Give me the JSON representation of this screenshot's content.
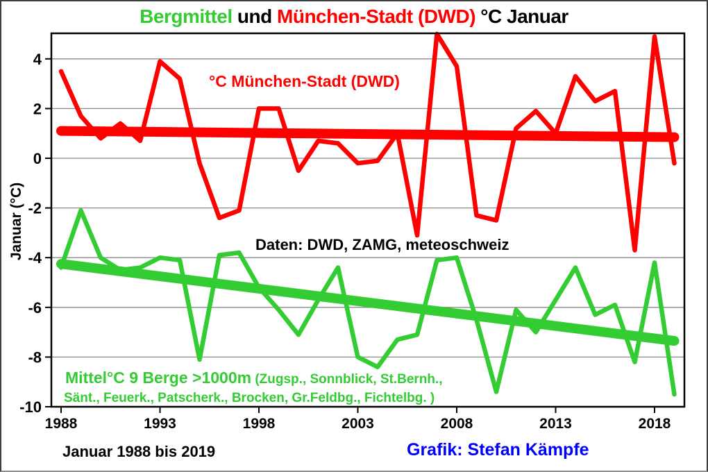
{
  "title": {
    "part_bergmittel": "Bergmittel",
    "part_und": " und ",
    "part_muenchen": "München-Stadt (DWD)",
    "part_rest": " °C Januar"
  },
  "annotations": {
    "red_series_label": "°C München-Stadt (DWD)",
    "data_sources": "Daten: DWD, ZAMG, meteoschweiz",
    "green_series_label_big": "Mittel°C 9 Berge >1000m",
    "green_series_label_small": " (Zugsp., Sonnblick, St.Bernh.,",
    "green_series_label_line2": "Sänt., Feuerk., Patscherk., Brocken, Gr.Feldbg., Fichtelbg. )",
    "footer_left": "Januar 1988 bis 2019",
    "footer_right": "Grafik: Stefan Kämpfe"
  },
  "colors": {
    "green": "#33cc33",
    "red": "#ff0000",
    "blue": "#0000ff",
    "gridline": "#8c8c8c",
    "frame": "#000000"
  },
  "chart_data": {
    "type": "line",
    "title": "Bergmittel und München-Stadt (DWD) °C Januar",
    "ylabel": "Januar (°C)",
    "ylim": [
      -10,
      5
    ],
    "yticks": [
      4,
      2,
      0,
      -2,
      -4,
      -6,
      -8,
      -10
    ],
    "xticks": [
      1988,
      1993,
      1998,
      2003,
      2008,
      2013,
      2018
    ],
    "grid": true,
    "legend_position": "inline-annotations",
    "x": [
      1988,
      1989,
      1990,
      1991,
      1992,
      1993,
      1994,
      1995,
      1996,
      1997,
      1998,
      1999,
      2000,
      2001,
      2002,
      2003,
      2004,
      2005,
      2006,
      2007,
      2008,
      2009,
      2010,
      2011,
      2012,
      2013,
      2014,
      2015,
      2016,
      2017,
      2018,
      2019
    ],
    "series": [
      {
        "name": "°C München-Stadt (DWD)",
        "color": "#ff0000",
        "values": [
          3.5,
          1.7,
          0.8,
          1.4,
          0.7,
          3.9,
          3.2,
          -0.2,
          -2.4,
          -2.1,
          2.0,
          2.0,
          -0.5,
          0.7,
          0.6,
          -0.2,
          -0.1,
          1.0,
          -3.1,
          5.0,
          3.7,
          -2.3,
          -2.5,
          1.2,
          1.9,
          1.0,
          3.3,
          2.3,
          2.7,
          -3.7,
          4.9,
          -0.2
        ]
      },
      {
        "name": "Mittel°C 9 Berge >1000m (Zugsp., Sonnblick, St.Bernh., Sänt., Feuerk., Patscherk., Brocken, Gr.Feldbg., Fichtelbg.)",
        "color": "#33cc33",
        "values": [
          -4.4,
          -2.1,
          -4.0,
          -4.5,
          -4.4,
          -4.0,
          -4.1,
          -8.1,
          -3.9,
          -3.8,
          -5.2,
          -6.1,
          -7.1,
          -5.7,
          -4.4,
          -8.0,
          -8.4,
          -7.3,
          -7.1,
          -4.1,
          -4.0,
          -6.5,
          -9.4,
          -6.1,
          -7.0,
          -5.7,
          -4.4,
          -6.3,
          -5.9,
          -8.2,
          -4.2,
          -9.5
        ]
      }
    ],
    "trend_lines": [
      {
        "series": "°C München-Stadt (DWD)",
        "color": "#ff0000",
        "start_value": 1.1,
        "end_value": 0.85
      },
      {
        "series": "Mittel°C 9 Berge >1000m",
        "color": "#33cc33",
        "start_value": -4.25,
        "end_value": -7.35
      }
    ]
  }
}
